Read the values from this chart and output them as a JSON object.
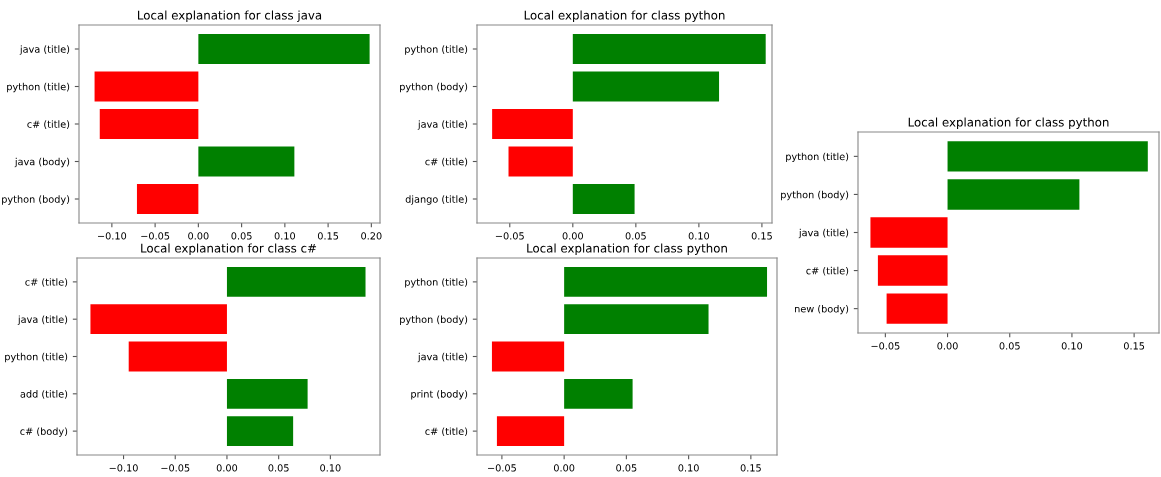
{
  "chart_data": [
    {
      "type": "bar",
      "orientation": "horizontal",
      "title": "Local explanation for class java",
      "categories": [
        "java (title)",
        "python (title)",
        "c# (title)",
        "java (body)",
        "python (body)"
      ],
      "values": [
        0.198,
        -0.12,
        -0.114,
        0.111,
        -0.071
      ],
      "colors": [
        "#008000",
        "#ff0000",
        "#ff0000",
        "#008000",
        "#ff0000"
      ],
      "xlim": [
        -0.138,
        0.21
      ],
      "xticks": [
        {
          "value": -0.1,
          "label": "−0.10"
        },
        {
          "value": -0.05,
          "label": "−0.05"
        },
        {
          "value": 0,
          "label": "0.00"
        },
        {
          "value": 0.05,
          "label": "0.05"
        },
        {
          "value": 0.1,
          "label": "0.10"
        },
        {
          "value": 0.15,
          "label": "0.15"
        },
        {
          "value": 0.2,
          "label": "0.20"
        }
      ],
      "grid": false
    },
    {
      "type": "bar",
      "orientation": "horizontal",
      "title": "Local explanation for class python",
      "categories": [
        "python (title)",
        "python (body)",
        "java (title)",
        "c# (title)",
        "django (title)"
      ],
      "values": [
        0.153,
        0.116,
        -0.064,
        -0.051,
        0.049
      ],
      "colors": [
        "#008000",
        "#008000",
        "#ff0000",
        "#ff0000",
        "#008000"
      ],
      "xlim": [
        -0.076,
        0.158
      ],
      "xticks": [
        {
          "value": -0.05,
          "label": "−0.05"
        },
        {
          "value": 0,
          "label": "0.00"
        },
        {
          "value": 0.05,
          "label": "0.05"
        },
        {
          "value": 0.1,
          "label": "0.10"
        },
        {
          "value": 0.15,
          "label": "0.15"
        }
      ],
      "grid": false
    },
    {
      "type": "bar",
      "orientation": "horizontal",
      "title": "Local explanation for class c#",
      "categories": [
        "c# (title)",
        "java (title)",
        "python (title)",
        "add (title)",
        "c# (body)"
      ],
      "values": [
        0.134,
        -0.132,
        -0.095,
        0.078,
        0.064
      ],
      "colors": [
        "#008000",
        "#ff0000",
        "#ff0000",
        "#008000",
        "#008000"
      ],
      "xlim": [
        -0.145,
        0.148
      ],
      "xticks": [
        {
          "value": -0.1,
          "label": "−0.10"
        },
        {
          "value": -0.05,
          "label": "−0.05"
        },
        {
          "value": 0,
          "label": "0.00"
        },
        {
          "value": 0.05,
          "label": "0.05"
        },
        {
          "value": 0.1,
          "label": "0.10"
        }
      ],
      "grid": false
    },
    {
      "type": "bar",
      "orientation": "horizontal",
      "title": "Local explanation for class python",
      "categories": [
        "python (title)",
        "python (body)",
        "java (title)",
        "print (body)",
        "c# (title)"
      ],
      "values": [
        0.163,
        0.116,
        -0.058,
        0.055,
        -0.054
      ],
      "colors": [
        "#008000",
        "#008000",
        "#ff0000",
        "#008000",
        "#ff0000"
      ],
      "xlim": [
        -0.07,
        0.171
      ],
      "xticks": [
        {
          "value": -0.05,
          "label": "−0.05"
        },
        {
          "value": 0,
          "label": "0.00"
        },
        {
          "value": 0.05,
          "label": "0.05"
        },
        {
          "value": 0.1,
          "label": "0.10"
        },
        {
          "value": 0.15,
          "label": "0.15"
        }
      ],
      "grid": false
    },
    {
      "type": "bar",
      "orientation": "horizontal",
      "title": "Local explanation for class python",
      "categories": [
        "python (title)",
        "python (body)",
        "java (title)",
        "c# (title)",
        "new (body)"
      ],
      "values": [
        0.161,
        0.106,
        -0.062,
        -0.056,
        -0.049
      ],
      "colors": [
        "#008000",
        "#008000",
        "#ff0000",
        "#ff0000",
        "#ff0000"
      ],
      "xlim": [
        -0.072,
        0.17
      ],
      "xticks": [
        {
          "value": -0.05,
          "label": "−0.05"
        },
        {
          "value": 0,
          "label": "0.00"
        },
        {
          "value": 0.05,
          "label": "0.05"
        },
        {
          "value": 0.1,
          "label": "0.10"
        },
        {
          "value": 0.15,
          "label": "0.15"
        }
      ],
      "grid": false
    }
  ]
}
